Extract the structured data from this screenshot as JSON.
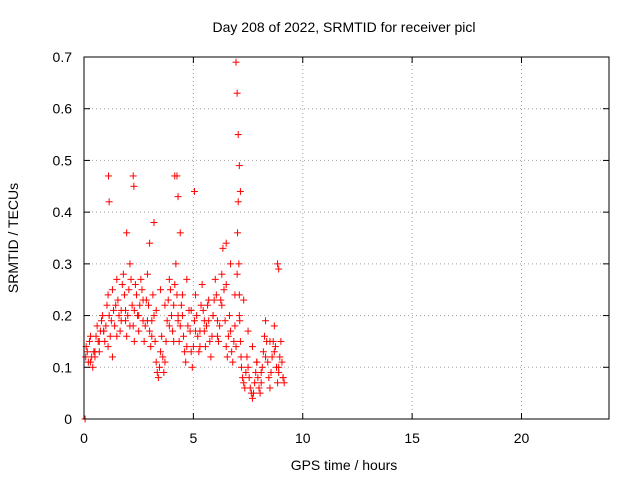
{
  "chart_data": {
    "type": "scatter",
    "title": "Day 208 of 2022, SRMTID for receiver picl",
    "xlabel": "GPS time / hours",
    "ylabel": "SRMTID / TECUs",
    "xlim": [
      0,
      24
    ],
    "ylim": [
      0,
      0.7
    ],
    "xticks": [
      0,
      5,
      10,
      15,
      20
    ],
    "yticks": [
      0,
      0.1,
      0.2,
      0.3,
      0.4,
      0.5,
      0.6,
      0.7
    ],
    "xtick_labels": [
      "0",
      "5",
      "10",
      "15",
      "20"
    ],
    "ytick_labels": [
      "0",
      "0.1",
      "0.2",
      "0.3",
      "0.4",
      "0.5",
      "0.6",
      "0.7"
    ],
    "grid": true,
    "marker": "+",
    "marker_color": "#ff0000",
    "series": [
      {
        "name": "SRMTID",
        "x": [
          0.05,
          0.08,
          0.1,
          0.15,
          0.2,
          0.25,
          0.3,
          0.35,
          0.4,
          0.45,
          0.5,
          0.55,
          0.6,
          0.65,
          0.7,
          0.75,
          0.8,
          0.85,
          0.9,
          0.95,
          1.0,
          1.05,
          1.1,
          1.15,
          1.2,
          1.25,
          1.3,
          1.35,
          1.4,
          1.45,
          1.5,
          1.55,
          1.6,
          1.65,
          1.7,
          1.75,
          1.8,
          1.85,
          1.9,
          1.95,
          2.0,
          2.05,
          2.1,
          2.15,
          2.2,
          2.25,
          2.3,
          2.35,
          2.4,
          2.45,
          2.5,
          2.55,
          2.6,
          2.65,
          2.7,
          2.75,
          2.8,
          2.85,
          2.9,
          2.95,
          3.0,
          3.05,
          3.1,
          3.15,
          3.2,
          3.25,
          3.3,
          3.35,
          3.4,
          3.45,
          3.5,
          3.55,
          3.6,
          3.65,
          3.7,
          3.75,
          3.8,
          3.85,
          3.9,
          3.95,
          4.0,
          4.05,
          4.1,
          4.15,
          4.2,
          4.25,
          4.3,
          4.35,
          4.4,
          4.45,
          4.5,
          4.55,
          4.6,
          4.65,
          4.7,
          4.75,
          4.8,
          4.85,
          4.9,
          4.95,
          5.0,
          5.05,
          5.1,
          5.15,
          5.2,
          5.25,
          5.3,
          5.35,
          5.4,
          5.45,
          5.5,
          5.55,
          5.6,
          5.65,
          5.7,
          5.75,
          5.8,
          5.85,
          5.9,
          5.95,
          6.0,
          6.05,
          6.1,
          6.15,
          6.2,
          6.25,
          6.3,
          6.35,
          6.4,
          6.45,
          6.5,
          6.55,
          6.6,
          6.65,
          6.7,
          6.75,
          6.8,
          6.85,
          6.9,
          6.95,
          7.0,
          7.02,
          7.05,
          7.08,
          7.1,
          7.12,
          7.15,
          7.18,
          7.2,
          7.25,
          7.3,
          7.35,
          7.4,
          7.45,
          7.5,
          7.55,
          7.6,
          7.65,
          7.7,
          7.75,
          7.8,
          7.85,
          7.9,
          7.95,
          8.0,
          8.05,
          8.1,
          8.15,
          8.2,
          8.25,
          8.3,
          8.35,
          8.4,
          8.45,
          8.5,
          8.55,
          8.6,
          8.65,
          8.7,
          8.75,
          8.8,
          8.85,
          8.9,
          8.95,
          9.0,
          9.05,
          9.1,
          9.15,
          0.3,
          0.5,
          0.7,
          0.9,
          1.1,
          1.3,
          1.5,
          1.7,
          1.9,
          2.1,
          2.3,
          2.5,
          2.7,
          2.9,
          3.1,
          3.3,
          3.5,
          3.7,
          3.9,
          4.1,
          4.3,
          4.5,
          4.7,
          4.9,
          5.1,
          5.3,
          5.5,
          5.7,
          5.9,
          6.1,
          6.3,
          6.5,
          6.7,
          6.9,
          7.1,
          7.3,
          7.5,
          7.7,
          7.9,
          8.1,
          8.3,
          8.5,
          8.7,
          8.9,
          9.1,
          1.12,
          1.15,
          2.25,
          2.28,
          4.15,
          4.25,
          4.3,
          5.05,
          6.95,
          7.0,
          7.05,
          7.1,
          7.15,
          8.85,
          8.9,
          4.4,
          6.5,
          1.95,
          3.2,
          3.0
        ],
        "y": [
          0.0,
          0.12,
          0.14,
          0.13,
          0.11,
          0.15,
          0.16,
          0.12,
          0.1,
          0.13,
          0.12,
          0.16,
          0.18,
          0.15,
          0.13,
          0.17,
          0.19,
          0.2,
          0.17,
          0.15,
          0.18,
          0.22,
          0.24,
          0.2,
          0.16,
          0.19,
          0.25,
          0.21,
          0.18,
          0.22,
          0.27,
          0.23,
          0.2,
          0.17,
          0.21,
          0.26,
          0.28,
          0.24,
          0.19,
          0.16,
          0.2,
          0.25,
          0.3,
          0.27,
          0.22,
          0.18,
          0.21,
          0.26,
          0.24,
          0.2,
          0.17,
          0.22,
          0.27,
          0.25,
          0.19,
          0.15,
          0.18,
          0.23,
          0.28,
          0.22,
          0.17,
          0.14,
          0.19,
          0.24,
          0.2,
          0.15,
          0.11,
          0.09,
          0.08,
          0.1,
          0.13,
          0.16,
          0.12,
          0.09,
          0.11,
          0.15,
          0.19,
          0.23,
          0.27,
          0.25,
          0.2,
          0.17,
          0.22,
          0.26,
          0.3,
          0.24,
          0.19,
          0.15,
          0.18,
          0.22,
          0.2,
          0.16,
          0.13,
          0.11,
          0.14,
          0.18,
          0.21,
          0.17,
          0.13,
          0.1,
          0.14,
          0.19,
          0.24,
          0.2,
          0.16,
          0.13,
          0.17,
          0.22,
          0.26,
          0.21,
          0.17,
          0.14,
          0.18,
          0.22,
          0.19,
          0.15,
          0.12,
          0.16,
          0.2,
          0.23,
          0.27,
          0.24,
          0.19,
          0.15,
          0.18,
          0.23,
          0.28,
          0.33,
          0.25,
          0.19,
          0.14,
          0.12,
          0.16,
          0.2,
          0.17,
          0.13,
          0.11,
          0.15,
          0.18,
          0.14,
          0.28,
          0.36,
          0.42,
          0.3,
          0.24,
          0.19,
          0.15,
          0.12,
          0.1,
          0.08,
          0.07,
          0.06,
          0.09,
          0.12,
          0.1,
          0.08,
          0.06,
          0.05,
          0.04,
          0.05,
          0.07,
          0.09,
          0.11,
          0.08,
          0.06,
          0.05,
          0.07,
          0.1,
          0.13,
          0.16,
          0.19,
          0.15,
          0.11,
          0.08,
          0.06,
          0.09,
          0.12,
          0.15,
          0.18,
          0.14,
          0.1,
          0.07,
          0.09,
          0.12,
          0.15,
          0.11,
          0.08,
          0.07,
          0.11,
          0.13,
          0.15,
          0.17,
          0.14,
          0.12,
          0.16,
          0.19,
          0.21,
          0.18,
          0.15,
          0.2,
          0.23,
          0.19,
          0.16,
          0.21,
          0.25,
          0.22,
          0.18,
          0.15,
          0.2,
          0.24,
          0.27,
          0.21,
          0.17,
          0.14,
          0.19,
          0.23,
          0.2,
          0.16,
          0.22,
          0.26,
          0.3,
          0.24,
          0.2,
          0.23,
          0.17,
          0.14,
          0.11,
          0.09,
          0.12,
          0.15,
          0.13,
          0.1,
          0.08,
          0.47,
          0.42,
          0.47,
          0.45,
          0.47,
          0.47,
          0.43,
          0.44,
          0.69,
          0.63,
          0.55,
          0.49,
          0.44,
          0.3,
          0.29,
          0.36,
          0.34,
          0.36,
          0.38,
          0.34
        ]
      }
    ]
  }
}
